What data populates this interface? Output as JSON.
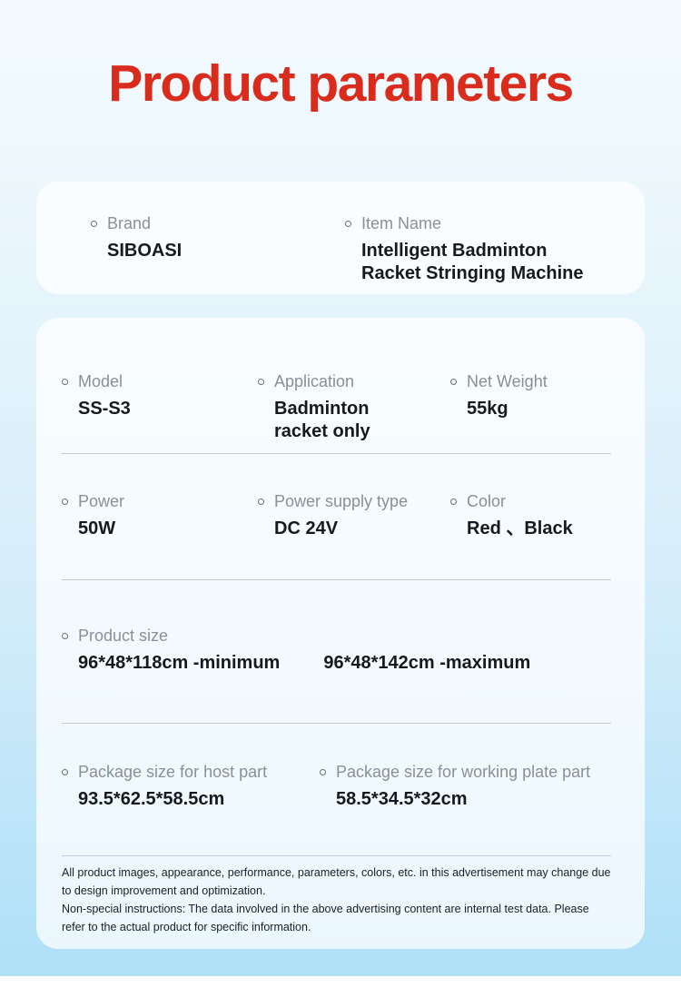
{
  "page": {
    "title": "Product parameters",
    "accent_color": "#da2c1c",
    "background_top": "#f4fbfe",
    "background_bottom": "#aee0f8"
  },
  "card1": {
    "fields": [
      {
        "label": "Brand",
        "value": "SIBOASI"
      },
      {
        "label": "Item Name",
        "value": "Intelligent Badminton\nRacket Stringing Machine"
      }
    ]
  },
  "specs": {
    "row1": [
      {
        "label": "Model",
        "value": "SS-S3"
      },
      {
        "label": "Application",
        "value": "Badminton\nracket only"
      },
      {
        "label": "Net Weight",
        "value": "55kg"
      }
    ],
    "row2": [
      {
        "label": "Power",
        "value": "50W"
      },
      {
        "label": "Power supply type",
        "value": "DC 24V"
      },
      {
        "label": "Color",
        "value": "Red 、Black"
      }
    ],
    "product_size": {
      "label": "Product size",
      "values": [
        "96*48*118cm -minimum",
        "96*48*142cm -maximum"
      ]
    },
    "package": [
      {
        "label": "Package size for host part",
        "value": "93.5*62.5*58.5cm"
      },
      {
        "label": "Package size for working plate part",
        "value": "58.5*34.5*32cm"
      }
    ]
  },
  "disclaimer": {
    "paragraphs": [
      "All product images, appearance, performance, parameters, colors, etc. in this advertisement may change due to design improvement and optimization.",
      "Non-special instructions: The data involved in the above advertising content are internal test data. Please refer to the actual product for specific information."
    ]
  }
}
